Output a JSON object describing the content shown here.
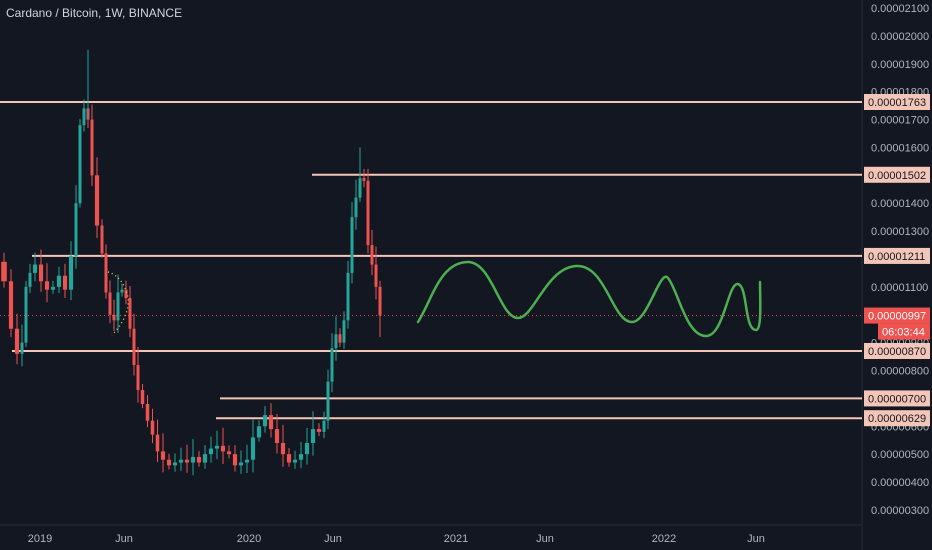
{
  "header": {
    "title": "Cardano / Bitcoin, 1W, BINANCE"
  },
  "colors": {
    "background": "#131722",
    "up": "#26a69a",
    "down": "#ef5350",
    "level_line": "#f4c6b8",
    "level_label_bg": "#f4c6b8",
    "price_label_bg": "#ef5350",
    "sketch": "#4caf50",
    "grid": "#2a2e39",
    "text": "#b2b5be"
  },
  "chart_data": {
    "type": "candlestick",
    "title": "Cardano / Bitcoin, 1W, BINANCE",
    "ylim": [
      2.6e-06,
      2.1e-06
    ],
    "y_ticks": [
      "0.00002100",
      "0.00002000",
      "0.00001900",
      "0.00001800",
      "0.00001700",
      "0.00001600",
      "0.00001500",
      "0.00001400",
      "0.00001300",
      "0.00001200",
      "0.00001100",
      "0.00001000",
      "0.00000900",
      "0.00000800",
      "0.00000700",
      "0.00000600",
      "0.00000500",
      "0.00000400",
      "0.00000300"
    ],
    "x_ticks": [
      "2019",
      "Jun",
      "2020",
      "Jun",
      "2021",
      "Jun",
      "2022",
      "Jun"
    ],
    "levels": [
      "0.00001763",
      "0.00001502",
      "0.00001211",
      "0.00000870",
      "0.00000700",
      "0.00000629"
    ],
    "current_price": "0.00000997",
    "countdown": "06:03:44",
    "price_points": [
      [
        0,
        1190
      ],
      [
        8,
        1120
      ],
      [
        14,
        950
      ],
      [
        20,
        860
      ],
      [
        24,
        900
      ],
      [
        28,
        1100
      ],
      [
        32,
        1150
      ],
      [
        38,
        1180
      ],
      [
        44,
        1120
      ],
      [
        50,
        1090
      ],
      [
        56,
        1100
      ],
      [
        62,
        1140
      ],
      [
        68,
        1090
      ],
      [
        74,
        1210
      ],
      [
        78,
        1400
      ],
      [
        82,
        1680
      ],
      [
        86,
        1740
      ],
      [
        90,
        1700
      ],
      [
        94,
        1500
      ],
      [
        100,
        1320
      ],
      [
        104,
        1220
      ],
      [
        108,
        1080
      ],
      [
        112,
        1000
      ],
      [
        116,
        980
      ],
      [
        120,
        1080
      ],
      [
        124,
        1090
      ],
      [
        128,
        1060
      ],
      [
        132,
        950
      ],
      [
        136,
        820
      ],
      [
        140,
        730
      ],
      [
        145,
        680
      ],
      [
        150,
        620
      ],
      [
        155,
        570
      ],
      [
        160,
        510
      ],
      [
        166,
        480
      ],
      [
        172,
        460
      ],
      [
        178,
        470
      ],
      [
        184,
        480
      ],
      [
        190,
        470
      ],
      [
        196,
        490
      ],
      [
        202,
        470
      ],
      [
        208,
        500
      ],
      [
        214,
        520
      ],
      [
        220,
        530
      ],
      [
        226,
        510
      ],
      [
        232,
        500
      ],
      [
        238,
        460
      ],
      [
        244,
        470
      ],
      [
        250,
        480
      ],
      [
        256,
        560
      ],
      [
        262,
        600
      ],
      [
        268,
        640
      ],
      [
        274,
        590
      ],
      [
        280,
        540
      ],
      [
        286,
        500
      ],
      [
        292,
        470
      ],
      [
        298,
        480
      ],
      [
        304,
        500
      ],
      [
        310,
        540
      ],
      [
        316,
        590
      ],
      [
        322,
        580
      ],
      [
        326,
        620
      ],
      [
        330,
        760
      ],
      [
        334,
        880
      ],
      [
        338,
        930
      ],
      [
        342,
        900
      ],
      [
        346,
        980
      ],
      [
        350,
        1150
      ],
      [
        354,
        1350
      ],
      [
        358,
        1420
      ],
      [
        362,
        1490
      ],
      [
        366,
        1480
      ],
      [
        370,
        1250
      ],
      [
        374,
        1180
      ],
      [
        378,
        1100
      ],
      [
        382,
        997
      ]
    ]
  }
}
